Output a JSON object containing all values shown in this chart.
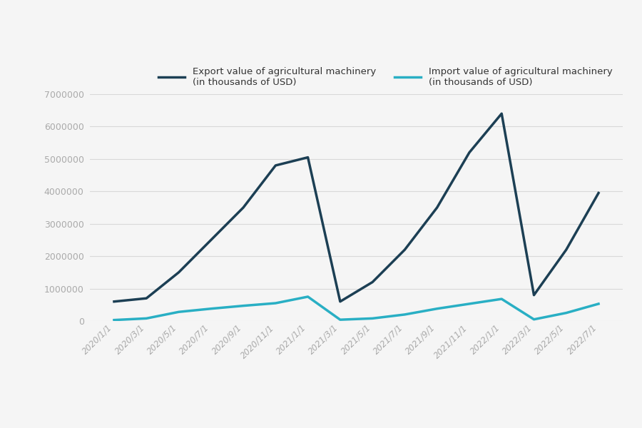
{
  "x_labels": [
    "2020/1/1",
    "2020/3/1",
    "2020/5/1",
    "2020/7/1",
    "2020/9/1",
    "2020/11/1",
    "2021/1/1",
    "2021/3/1",
    "2021/5/1",
    "2021/7/1",
    "2021/9/1",
    "2021/11/1",
    "2022/1/1",
    "2022/3/1",
    "2022/5/1",
    "2022/7/1"
  ],
  "export_values": [
    600000,
    700000,
    1500000,
    2500000,
    3500000,
    4800000,
    5050000,
    600000,
    1200000,
    2200000,
    3500000,
    5200000,
    6400000,
    800000,
    2200000,
    3950000
  ],
  "import_values": [
    30000,
    80000,
    280000,
    380000,
    470000,
    550000,
    750000,
    40000,
    80000,
    200000,
    380000,
    530000,
    680000,
    50000,
    250000,
    530000
  ],
  "export_color": "#1c3f54",
  "import_color": "#29afc4",
  "export_label": "Export value of agricultural machinery\n(in thousands of USD)",
  "import_label": "Import value of agricultural machinery\n(in thousands of USD)",
  "ylim": [
    0,
    7000000
  ],
  "yticks": [
    0,
    1000000,
    2000000,
    3000000,
    4000000,
    5000000,
    6000000,
    7000000
  ],
  "background_color": "#f5f5f5",
  "grid_color": "#d8d8d8",
  "tick_color": "#aaaaaa",
  "label_color": "#333333"
}
